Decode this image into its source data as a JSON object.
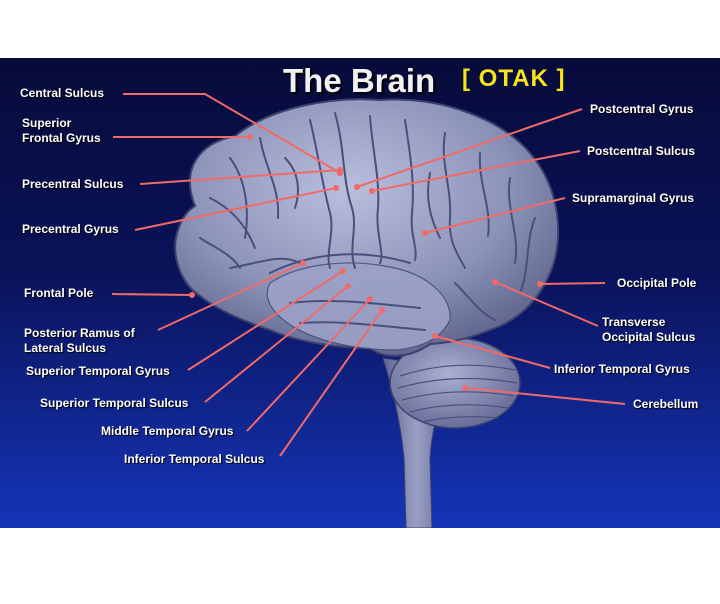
{
  "title": "The Brain",
  "subtitle": "[ OTAK ]",
  "colors": {
    "background_top": "#070b3a",
    "background_bottom": "#1535b8",
    "leader_line": "#f06a6a",
    "title_text": "#f2f2f2",
    "subtitle_text": "#f5e51c",
    "label_text": "#ffffff",
    "brain": "#8c93b8"
  },
  "labels": {
    "central_sulcus": "Central Sulcus",
    "superior_frontal_gyrus": "Superior\nFrontal Gyrus",
    "precentral_sulcus": "Precentral Sulcus",
    "precentral_gyrus": "Precentral Gyrus",
    "frontal_pole": "Frontal Pole",
    "posterior_ramus": "Posterior Ramus of\nLateral Sulcus",
    "superior_temporal_gyrus": "Superior Temporal Gyrus",
    "superior_temporal_sulcus": "Superior Temporal Sulcus",
    "middle_temporal_gyrus": "Middle Temporal Gyrus",
    "inferior_temporal_sulcus": "Inferior Temporal Sulcus",
    "postcentral_gyrus": "Postcentral Gyrus",
    "postcentral_sulcus": "Postcentral Sulcus",
    "supramarginal_gyrus": "Supramarginal Gyrus",
    "occipital_pole": "Occipital Pole",
    "transverse_occipital_sulcus": "Transverse\nOccipital Sulcus",
    "inferior_temporal_gyrus": "Inferior Temporal Gyrus",
    "cerebellum": "Cerebellum"
  }
}
